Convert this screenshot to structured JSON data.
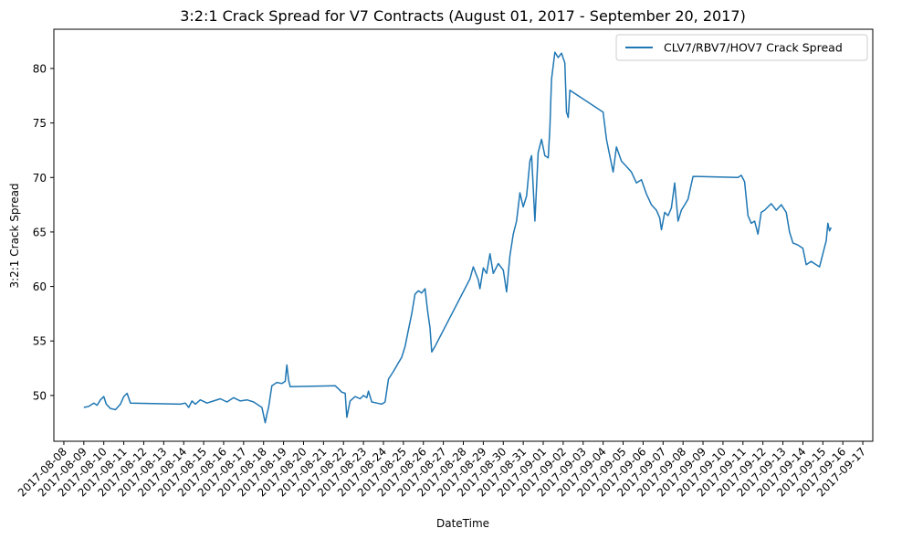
{
  "chart_data": {
    "type": "line",
    "title": "3:2:1 Crack Spread for V7 Contracts (August 01, 2017 - September 20, 2017)",
    "xlabel": "DateTime",
    "ylabel": "3:2:1 Crack Spread",
    "xlim": [
      "2017-08-07T12:00",
      "2017-09-17T12:00"
    ],
    "ylim": [
      45.8,
      83.6
    ],
    "yticks": [
      50,
      55,
      60,
      65,
      70,
      75,
      80
    ],
    "xticks": [
      "2017-08-08",
      "2017-08-09",
      "2017-08-10",
      "2017-08-11",
      "2017-08-12",
      "2017-08-13",
      "2017-08-14",
      "2017-08-15",
      "2017-08-16",
      "2017-08-17",
      "2017-08-18",
      "2017-08-19",
      "2017-08-20",
      "2017-08-21",
      "2017-08-22",
      "2017-08-23",
      "2017-08-24",
      "2017-08-25",
      "2017-08-26",
      "2017-08-27",
      "2017-08-28",
      "2017-08-29",
      "2017-08-30",
      "2017-08-31",
      "2017-09-01",
      "2017-09-02",
      "2017-09-03",
      "2017-09-04",
      "2017-09-05",
      "2017-09-06",
      "2017-09-07",
      "2017-09-08",
      "2017-09-09",
      "2017-09-10",
      "2017-09-11",
      "2017-09-12",
      "2017-09-13",
      "2017-09-14",
      "2017-09-15",
      "2017-09-16",
      "2017-09-17"
    ],
    "legend_position": "top-right",
    "grid": false,
    "series": [
      {
        "name": "CLV7/RBV7/HOV7 Crack Spread",
        "color": "#1f77b4",
        "points": [
          [
            "2017-08-09T00:00",
            48.9
          ],
          [
            "2017-08-09T06:00",
            49.0
          ],
          [
            "2017-08-09T12:00",
            49.3
          ],
          [
            "2017-08-09T16:00",
            49.1
          ],
          [
            "2017-08-09T20:00",
            49.6
          ],
          [
            "2017-08-10T00:00",
            49.9
          ],
          [
            "2017-08-10T03:00",
            49.2
          ],
          [
            "2017-08-10T08:00",
            48.8
          ],
          [
            "2017-08-10T14:00",
            48.7
          ],
          [
            "2017-08-10T20:00",
            49.2
          ],
          [
            "2017-08-11T00:00",
            49.9
          ],
          [
            "2017-08-11T04:00",
            50.2
          ],
          [
            "2017-08-11T08:00",
            49.3
          ],
          [
            "2017-08-13T20:00",
            49.2
          ],
          [
            "2017-08-14T02:00",
            49.3
          ],
          [
            "2017-08-14T06:00",
            48.9
          ],
          [
            "2017-08-14T10:00",
            49.5
          ],
          [
            "2017-08-14T14:00",
            49.2
          ],
          [
            "2017-08-14T20:00",
            49.6
          ],
          [
            "2017-08-15T04:00",
            49.3
          ],
          [
            "2017-08-15T12:00",
            49.5
          ],
          [
            "2017-08-15T20:00",
            49.7
          ],
          [
            "2017-08-16T04:00",
            49.4
          ],
          [
            "2017-08-16T12:00",
            49.8
          ],
          [
            "2017-08-16T20:00",
            49.5
          ],
          [
            "2017-08-17T04:00",
            49.6
          ],
          [
            "2017-08-17T12:00",
            49.4
          ],
          [
            "2017-08-17T16:00",
            49.2
          ],
          [
            "2017-08-17T22:00",
            48.9
          ],
          [
            "2017-08-18T02:00",
            47.5
          ],
          [
            "2017-08-18T04:00",
            48.3
          ],
          [
            "2017-08-18T06:00",
            48.9
          ],
          [
            "2017-08-18T10:00",
            50.9
          ],
          [
            "2017-08-18T16:00",
            51.2
          ],
          [
            "2017-08-18T22:00",
            51.1
          ],
          [
            "2017-08-19T02:00",
            51.3
          ],
          [
            "2017-08-19T04:00",
            52.8
          ],
          [
            "2017-08-19T06:00",
            51.4
          ],
          [
            "2017-08-19T08:00",
            50.8
          ],
          [
            "2017-08-21T14:00",
            50.9
          ],
          [
            "2017-08-21T18:00",
            50.6
          ],
          [
            "2017-08-21T22:00",
            50.3
          ],
          [
            "2017-08-22T02:00",
            50.2
          ],
          [
            "2017-08-22T04:00",
            48.0
          ],
          [
            "2017-08-22T08:00",
            49.5
          ],
          [
            "2017-08-22T14:00",
            49.9
          ],
          [
            "2017-08-22T20:00",
            49.7
          ],
          [
            "2017-08-23T00:00",
            50.0
          ],
          [
            "2017-08-23T04:00",
            49.8
          ],
          [
            "2017-08-23T06:00",
            50.4
          ],
          [
            "2017-08-23T10:00",
            49.4
          ],
          [
            "2017-08-23T16:00",
            49.3
          ],
          [
            "2017-08-23T22:00",
            49.2
          ],
          [
            "2017-08-24T02:00",
            49.4
          ],
          [
            "2017-08-24T06:00",
            51.5
          ],
          [
            "2017-08-24T12:00",
            52.2
          ],
          [
            "2017-08-24T18:00",
            53.0
          ],
          [
            "2017-08-24T22:00",
            53.5
          ],
          [
            "2017-08-25T02:00",
            54.5
          ],
          [
            "2017-08-25T06:00",
            56.0
          ],
          [
            "2017-08-25T10:00",
            57.5
          ],
          [
            "2017-08-25T14:00",
            59.3
          ],
          [
            "2017-08-25T18:00",
            59.6
          ],
          [
            "2017-08-25T22:00",
            59.4
          ],
          [
            "2017-08-26T02:00",
            59.8
          ],
          [
            "2017-08-26T05:00",
            57.8
          ],
          [
            "2017-08-26T08:00",
            56.2
          ],
          [
            "2017-08-26T10:00",
            54.0
          ],
          [
            "2017-08-26T14:00",
            54.5
          ],
          [
            "2017-08-28T08:00",
            60.7
          ],
          [
            "2017-08-28T12:00",
            61.8
          ],
          [
            "2017-08-28T18:00",
            60.6
          ],
          [
            "2017-08-28T20:00",
            59.8
          ],
          [
            "2017-08-29T00:00",
            61.7
          ],
          [
            "2017-08-29T04:00",
            61.2
          ],
          [
            "2017-08-29T08:00",
            63.0
          ],
          [
            "2017-08-29T12:00",
            61.2
          ],
          [
            "2017-08-29T18:00",
            62.1
          ],
          [
            "2017-08-30T00:00",
            61.5
          ],
          [
            "2017-08-30T04:00",
            59.5
          ],
          [
            "2017-08-30T08:00",
            62.8
          ],
          [
            "2017-08-30T12:00",
            64.8
          ],
          [
            "2017-08-30T16:00",
            66.0
          ],
          [
            "2017-08-30T20:00",
            68.6
          ],
          [
            "2017-08-31T00:00",
            67.3
          ],
          [
            "2017-08-31T04:00",
            68.3
          ],
          [
            "2017-08-31T08:00",
            71.5
          ],
          [
            "2017-08-31T10:00",
            72.0
          ],
          [
            "2017-08-31T14:00",
            66.0
          ],
          [
            "2017-08-31T18:00",
            72.3
          ],
          [
            "2017-08-31T22:00",
            73.5
          ],
          [
            "2017-09-01T02:00",
            72.0
          ],
          [
            "2017-09-01T06:00",
            71.8
          ],
          [
            "2017-09-01T08:00",
            74.5
          ],
          [
            "2017-09-01T10:00",
            79.0
          ],
          [
            "2017-09-01T14:00",
            81.5
          ],
          [
            "2017-09-01T18:00",
            81.0
          ],
          [
            "2017-09-01T22:00",
            81.4
          ],
          [
            "2017-09-02T02:00",
            80.5
          ],
          [
            "2017-09-02T04:00",
            76.0
          ],
          [
            "2017-09-02T06:00",
            75.5
          ],
          [
            "2017-09-02T08:00",
            78.0
          ],
          [
            "2017-09-04T00:00",
            76.0
          ],
          [
            "2017-09-04T04:00",
            73.5
          ],
          [
            "2017-09-04T08:00",
            72.0
          ],
          [
            "2017-09-04T12:00",
            70.5
          ],
          [
            "2017-09-04T16:00",
            72.8
          ],
          [
            "2017-09-04T22:00",
            71.5
          ],
          [
            "2017-09-05T04:00",
            71.0
          ],
          [
            "2017-09-05T10:00",
            70.5
          ],
          [
            "2017-09-05T16:00",
            69.5
          ],
          [
            "2017-09-05T22:00",
            69.8
          ],
          [
            "2017-09-06T04:00",
            68.5
          ],
          [
            "2017-09-06T10:00",
            67.5
          ],
          [
            "2017-09-06T16:00",
            67.0
          ],
          [
            "2017-09-06T20:00",
            66.3
          ],
          [
            "2017-09-06T22:00",
            65.2
          ],
          [
            "2017-09-07T02:00",
            66.8
          ],
          [
            "2017-09-07T06:00",
            66.5
          ],
          [
            "2017-09-07T10:00",
            67.2
          ],
          [
            "2017-09-07T14:00",
            69.5
          ],
          [
            "2017-09-07T18:00",
            66.0
          ],
          [
            "2017-09-07T22:00",
            67.0
          ],
          [
            "2017-09-08T02:00",
            67.5
          ],
          [
            "2017-09-08T06:00",
            68.0
          ],
          [
            "2017-09-08T12:00",
            70.1
          ],
          [
            "2017-09-10T18:00",
            70.0
          ],
          [
            "2017-09-10T22:00",
            70.2
          ],
          [
            "2017-09-11T02:00",
            69.6
          ],
          [
            "2017-09-11T06:00",
            66.5
          ],
          [
            "2017-09-11T10:00",
            65.8
          ],
          [
            "2017-09-11T14:00",
            66.0
          ],
          [
            "2017-09-11T18:00",
            64.8
          ],
          [
            "2017-09-11T22:00",
            66.8
          ],
          [
            "2017-09-12T02:00",
            67.0
          ],
          [
            "2017-09-12T06:00",
            67.3
          ],
          [
            "2017-09-12T10:00",
            67.6
          ],
          [
            "2017-09-12T16:00",
            67.0
          ],
          [
            "2017-09-12T22:00",
            67.5
          ],
          [
            "2017-09-13T04:00",
            66.8
          ],
          [
            "2017-09-13T08:00",
            65.0
          ],
          [
            "2017-09-13T12:00",
            64.0
          ],
          [
            "2017-09-13T18:00",
            63.8
          ],
          [
            "2017-09-14T00:00",
            63.5
          ],
          [
            "2017-09-14T04:00",
            62.0
          ],
          [
            "2017-09-14T10:00",
            62.3
          ],
          [
            "2017-09-14T16:00",
            62.0
          ],
          [
            "2017-09-14T20:00",
            61.8
          ],
          [
            "2017-09-15T00:00",
            63.0
          ],
          [
            "2017-09-15T04:00",
            64.2
          ],
          [
            "2017-09-15T06:00",
            65.8
          ],
          [
            "2017-09-15T08:00",
            65.1
          ],
          [
            "2017-09-15T10:00",
            65.4
          ]
        ]
      }
    ]
  }
}
